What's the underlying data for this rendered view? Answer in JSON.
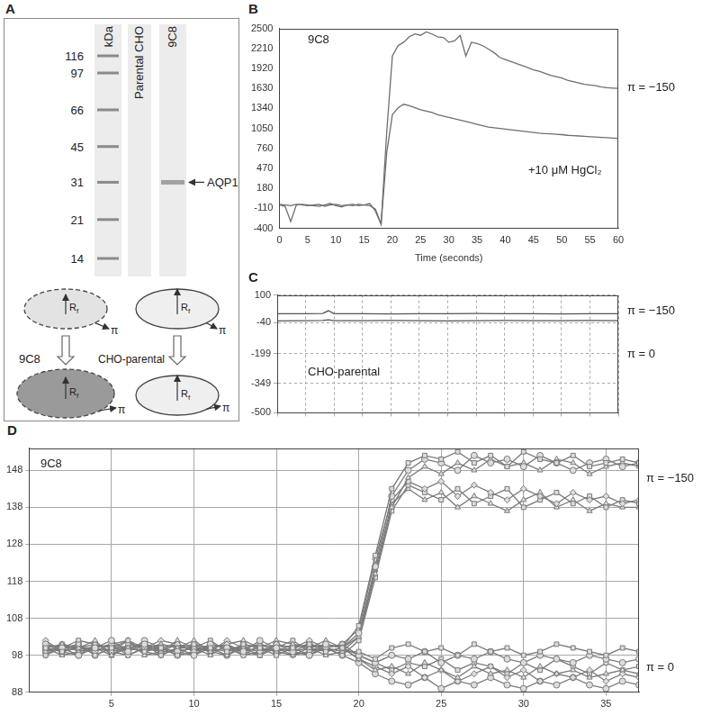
{
  "panel_a": {
    "panel": "A",
    "gel": {
      "unit": "kDa",
      "markers": [
        116,
        97,
        66,
        45,
        31,
        21,
        14
      ],
      "lanes": [
        "Parental CHO",
        "9C8"
      ],
      "bands": [
        {
          "lane": "9C8",
          "kDa": 31,
          "label": "AQP1"
        }
      ]
    },
    "diagram": {
      "radius_label": "Rf",
      "pressure_label": "π",
      "cells": [
        "9C8",
        "CHO-parental"
      ]
    }
  },
  "chart_data": [
    {
      "panel": "B",
      "type": "line",
      "x_label": "Time (seconds)",
      "annotations": [
        "9C8",
        "π = −150",
        "+10 μM HgCl₂"
      ],
      "xlim": [
        0,
        60
      ],
      "xticks": [
        0,
        5,
        10,
        15,
        20,
        25,
        30,
        35,
        40,
        45,
        50,
        55,
        60
      ],
      "ylim": [
        -400,
        2500
      ],
      "yticks": [
        -400,
        -110,
        180,
        470,
        760,
        1050,
        1340,
        1630,
        1920,
        2210,
        2500
      ],
      "grid": false,
      "x": [
        0,
        1,
        2,
        3,
        4,
        5,
        6,
        7,
        8,
        9,
        10,
        11,
        12,
        13,
        14,
        15,
        16,
        17,
        18,
        19,
        20,
        21,
        22,
        23,
        24,
        25,
        26,
        27,
        28,
        29,
        30,
        31,
        32,
        33,
        34,
        35,
        36,
        37,
        38,
        39,
        40,
        41,
        42,
        43,
        44,
        45,
        46,
        47,
        48,
        49,
        50,
        51,
        52,
        53,
        54,
        55,
        56,
        57,
        58,
        59,
        60
      ],
      "series": [
        {
          "color": "#6e6e6e",
          "values": [
            -60,
            -80,
            -300,
            -60,
            -50,
            -60,
            -70,
            -80,
            -60,
            -40,
            -70,
            -90,
            -60,
            -50,
            -70,
            -60,
            -40,
            -150,
            -340,
            1000,
            2100,
            2250,
            2300,
            2380,
            2420,
            2400,
            2450,
            2420,
            2380,
            2370,
            2300,
            2320,
            2400,
            2100,
            2300,
            2280,
            2250,
            2200,
            2150,
            2080,
            2050,
            2020,
            1990,
            1960,
            1930,
            1900,
            1880,
            1850,
            1820,
            1800,
            1780,
            1750,
            1730,
            1710,
            1690,
            1680,
            1670,
            1650,
            1640,
            1635,
            1630
          ]
        },
        {
          "color": "#6e6e6e",
          "values": [
            -50,
            -60,
            -70,
            -50,
            -60,
            -70,
            -60,
            -50,
            -80,
            -60,
            -50,
            -70,
            -60,
            -70,
            -50,
            -60,
            -70,
            -120,
            -340,
            700,
            1250,
            1350,
            1400,
            1380,
            1350,
            1320,
            1300,
            1280,
            1250,
            1230,
            1210,
            1190,
            1170,
            1150,
            1130,
            1110,
            1090,
            1070,
            1060,
            1050,
            1040,
            1030,
            1020,
            1010,
            1000,
            990,
            980,
            975,
            970,
            965,
            960,
            950,
            945,
            940,
            935,
            930,
            925,
            920,
            915,
            910,
            905
          ]
        }
      ]
    },
    {
      "panel": "C",
      "type": "line",
      "annotations": [
        "CHO-parental",
        "π = −150",
        "π = 0"
      ],
      "xlim": [
        0,
        60
      ],
      "xticks": [
        0,
        5,
        10,
        15,
        20,
        25,
        30,
        35,
        40,
        45,
        50,
        55,
        60
      ],
      "ylim": [
        -500,
        100
      ],
      "yticks": [
        -500,
        -349,
        -199,
        -40,
        100
      ],
      "grid": "dashed",
      "tick_labels": "y",
      "x": [
        0,
        5,
        8,
        9,
        10,
        15,
        20,
        25,
        30,
        35,
        40,
        45,
        50,
        55,
        60
      ],
      "series": [
        {
          "color": "#555555",
          "values": [
            5,
            5,
            6,
            20,
            5,
            5,
            4,
            5,
            5,
            6,
            5,
            5,
            4,
            5,
            5
          ]
        },
        {
          "color": "#555555",
          "values": [
            -32,
            -31,
            -30,
            -26,
            -31,
            -31,
            -30,
            -31,
            -32,
            -31,
            -30,
            -31,
            -31,
            -30,
            -31
          ]
        }
      ]
    },
    {
      "panel": "D",
      "type": "line",
      "annotations": [
        "9C8",
        "π = −150",
        "π = 0"
      ],
      "xlim": [
        0,
        37
      ],
      "xticks": [
        5,
        10,
        15,
        20,
        25,
        30,
        35
      ],
      "ylim": [
        88,
        154
      ],
      "yticks": [
        88,
        98,
        108,
        118,
        128,
        138,
        148
      ],
      "grid": true,
      "x": [
        1,
        2,
        3,
        4,
        5,
        6,
        7,
        8,
        9,
        10,
        11,
        12,
        13,
        14,
        15,
        16,
        17,
        18,
        19,
        20,
        21,
        22,
        23,
        24,
        25,
        26,
        27,
        28,
        29,
        30,
        31,
        32,
        33,
        34,
        35,
        36,
        37
      ],
      "series": [
        {
          "color": "#7a7a7a",
          "marker": "square",
          "values": [
            100,
            99,
            101,
            98,
            100,
            102,
            99,
            100,
            98,
            101,
            100,
            99,
            101,
            100,
            98,
            100,
            101,
            99,
            100,
            106,
            125,
            143,
            150,
            152,
            151,
            153,
            150,
            152,
            149,
            153,
            151,
            150,
            152,
            149,
            150,
            151,
            150
          ]
        },
        {
          "color": "#7a7a7a",
          "marker": "circle",
          "values": [
            101,
            100,
            98,
            100,
            102,
            99,
            101,
            100,
            99,
            98,
            101,
            100,
            99,
            102,
            100,
            99,
            98,
            101,
            100,
            104,
            122,
            141,
            148,
            151,
            150,
            148,
            152,
            150,
            151,
            149,
            152,
            150,
            148,
            150,
            151,
            149,
            150
          ]
        },
        {
          "color": "#7a7a7a",
          "marker": "triangle",
          "values": [
            99,
            101,
            100,
            102,
            98,
            100,
            99,
            101,
            100,
            102,
            99,
            98,
            100,
            101,
            99,
            101,
            100,
            98,
            99,
            103,
            120,
            138,
            146,
            149,
            147,
            150,
            148,
            151,
            149,
            150,
            148,
            151,
            150,
            147,
            149,
            150,
            149
          ]
        },
        {
          "color": "#7a7a7a",
          "marker": "diamond",
          "values": [
            102,
            99,
            100,
            99,
            101,
            98,
            100,
            102,
            101,
            99,
            100,
            101,
            98,
            99,
            101,
            100,
            102,
            100,
            101,
            105,
            124,
            140,
            145,
            143,
            145,
            141,
            144,
            142,
            140,
            143,
            141,
            139,
            142,
            140,
            141,
            139,
            140
          ]
        },
        {
          "color": "#7a7a7a",
          "marker": "square",
          "values": [
            98,
            100,
            102,
            101,
            99,
            100,
            101,
            98,
            100,
            100,
            102,
            99,
            100,
            98,
            100,
            102,
            99,
            100,
            98,
            102,
            119,
            137,
            144,
            142,
            140,
            143,
            139,
            141,
            143,
            138,
            140,
            142,
            139,
            141,
            138,
            140,
            139
          ]
        },
        {
          "color": "#7a7a7a",
          "marker": "triangle",
          "values": [
            100,
            98,
            99,
            100,
            101,
            102,
            98,
            99,
            102,
            100,
            98,
            101,
            102,
            100,
            99,
            98,
            100,
            102,
            100,
            103,
            121,
            139,
            143,
            140,
            142,
            138,
            141,
            139,
            137,
            140,
            142,
            138,
            140,
            137,
            139,
            138,
            138
          ]
        },
        {
          "color": "#7a7a7a",
          "marker": "square",
          "values": [
            100,
            101,
            99,
            100,
            98,
            101,
            100,
            99,
            101,
            100,
            99,
            100,
            98,
            101,
            100,
            99,
            101,
            100,
            99,
            99,
            97,
            100,
            101,
            99,
            100,
            98,
            101,
            99,
            100,
            98,
            99,
            101,
            100,
            99,
            98,
            100,
            99
          ]
        },
        {
          "color": "#7a7a7a",
          "marker": "circle",
          "values": [
            99,
            100,
            101,
            98,
            100,
            99,
            102,
            100,
            98,
            99,
            101,
            100,
            100,
            99,
            101,
            100,
            98,
            100,
            101,
            98,
            96,
            98,
            97,
            99,
            96,
            98,
            97,
            99,
            97,
            96,
            98,
            97,
            96,
            98,
            97,
            96,
            97
          ]
        },
        {
          "color": "#7a7a7a",
          "marker": "triangle",
          "values": [
            101,
            99,
            100,
            100,
            99,
            102,
            100,
            101,
            100,
            98,
            100,
            101,
            99,
            100,
            102,
            101,
            100,
            99,
            100,
            97,
            94,
            95,
            93,
            96,
            94,
            92,
            95,
            93,
            94,
            92,
            95,
            93,
            94,
            92,
            93,
            94,
            93
          ]
        },
        {
          "color": "#7a7a7a",
          "marker": "diamond",
          "values": [
            98,
            101,
            100,
            99,
            101,
            100,
            99,
            98,
            100,
            101,
            99,
            102,
            100,
            99,
            100,
            98,
            99,
            101,
            100,
            97,
            95,
            93,
            95,
            92,
            94,
            91,
            93,
            95,
            92,
            94,
            91,
            93,
            92,
            94,
            91,
            93,
            92
          ]
        },
        {
          "color": "#7a7a7a",
          "marker": "circle",
          "values": [
            100,
            99,
            98,
            101,
            100,
            100,
            101,
            99,
            99,
            100,
            100,
            98,
            101,
            100,
            99,
            100,
            101,
            100,
            98,
            96,
            93,
            91,
            90,
            92,
            89,
            91,
            90,
            92,
            90,
            89,
            91,
            90,
            92,
            90,
            89,
            91,
            90
          ]
        },
        {
          "color": "#7a7a7a",
          "marker": "square",
          "values": [
            99,
            100,
            100,
            101,
            99,
            98,
            100,
            100,
            101,
            99,
            101,
            100,
            99,
            98,
            101,
            99,
            100,
            101,
            100,
            98,
            96,
            94,
            96,
            95,
            97,
            94,
            96,
            95,
            93,
            96,
            94,
            97,
            95,
            93,
            96,
            94,
            95
          ]
        }
      ]
    }
  ]
}
